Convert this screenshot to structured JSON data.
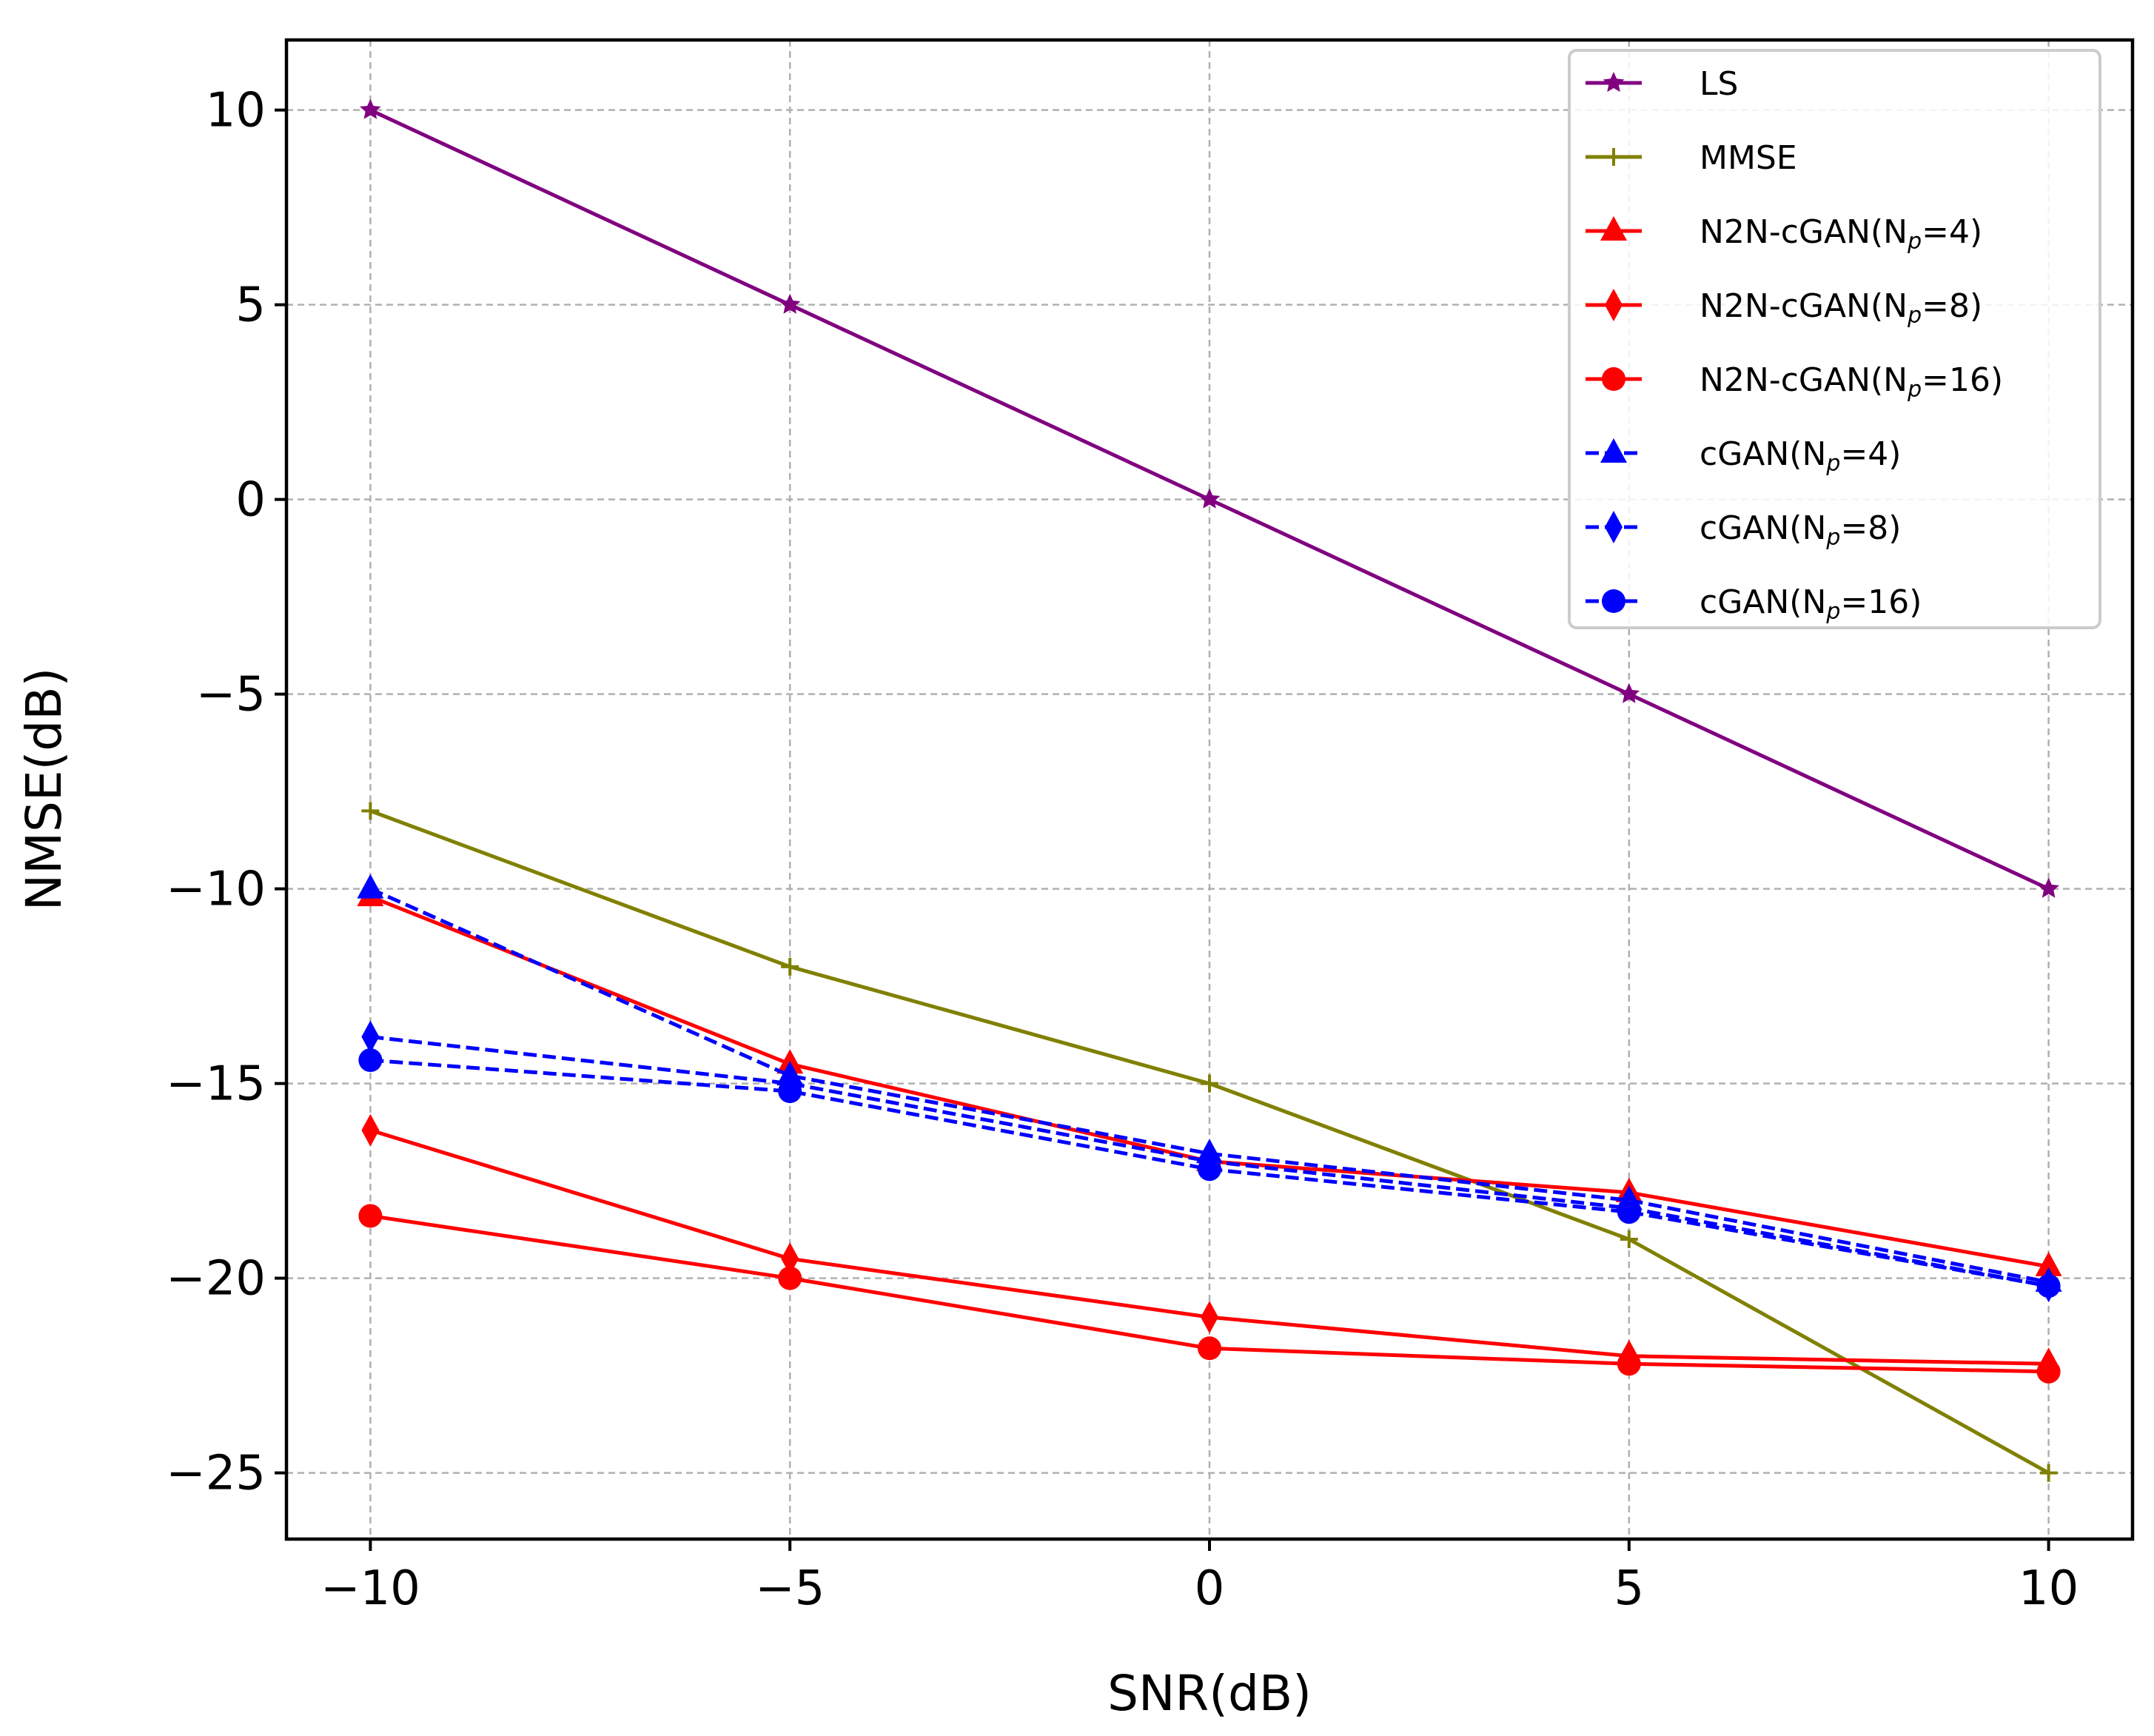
{
  "chart_data": {
    "type": "line",
    "title": "",
    "xlabel": "SNR(dB)",
    "ylabel": "NMSE(dB)",
    "xlim": [
      -11,
      11
    ],
    "ylim": [
      -26.7,
      11.8
    ],
    "grid": true,
    "legend_position": "top-right",
    "xticks": [
      -10,
      -5,
      0,
      5,
      10
    ],
    "xtick_labels": [
      "−10",
      "−5",
      "0",
      "5",
      "10"
    ],
    "yticks": [
      10,
      5,
      0,
      -5,
      -10,
      -15,
      -20,
      -25
    ],
    "ytick_labels": [
      "10",
      "5",
      "0",
      "−5",
      "−10",
      "−15",
      "−20",
      "−25"
    ],
    "x": [
      -10,
      -5,
      0,
      5,
      10
    ],
    "series": [
      {
        "name": "LS",
        "label": "LS",
        "sub": "",
        "label_suffix": "",
        "values": [
          10,
          5,
          0,
          -5,
          -10
        ],
        "color": "#800080",
        "marker": "star",
        "dashed": false
      },
      {
        "name": "MMSE",
        "label": "MMSE",
        "sub": "",
        "label_suffix": "",
        "values": [
          -8,
          -12,
          -15,
          -19,
          -25
        ],
        "color": "#808000",
        "marker": "plus",
        "dashed": false
      },
      {
        "name": "N2N-cGAN(Np=4)",
        "label": "N2N-cGAN(N",
        "sub": "p",
        "label_suffix": "=4)",
        "values": [
          -10.2,
          -14.5,
          -17.0,
          -17.8,
          -19.7
        ],
        "color": "#ff0000",
        "marker": "triangle",
        "dashed": false
      },
      {
        "name": "N2N-cGAN(Np=8)",
        "label": "N2N-cGAN(N",
        "sub": "p",
        "label_suffix": "=8)",
        "values": [
          -16.2,
          -19.5,
          -21.0,
          -22.0,
          -22.2
        ],
        "color": "#ff0000",
        "marker": "diamond",
        "dashed": false
      },
      {
        "name": "N2N-cGAN(Np=16)",
        "label": "N2N-cGAN(N",
        "sub": "p",
        "label_suffix": "=16)",
        "values": [
          -18.4,
          -20.0,
          -21.8,
          -22.2,
          -22.4
        ],
        "color": "#ff0000",
        "marker": "circle",
        "dashed": false
      },
      {
        "name": "cGAN(Np=4)",
        "label": "cGAN(N",
        "sub": "p",
        "label_suffix": "=4)",
        "values": [
          -10.0,
          -14.8,
          -16.8,
          -18.0,
          -20.1
        ],
        "color": "#0000ff",
        "marker": "triangle",
        "dashed": true
      },
      {
        "name": "cGAN(Np=8)",
        "label": "cGAN(N",
        "sub": "p",
        "label_suffix": "=8)",
        "values": [
          -13.8,
          -15.0,
          -17.0,
          -18.2,
          -20.2
        ],
        "color": "#0000ff",
        "marker": "diamond",
        "dashed": true
      },
      {
        "name": "cGAN(Np=16)",
        "label": "cGAN(N",
        "sub": "p",
        "label_suffix": "=16)",
        "values": [
          -14.4,
          -15.2,
          -17.2,
          -18.3,
          -20.2
        ],
        "color": "#0000ff",
        "marker": "circle",
        "dashed": true
      }
    ]
  }
}
